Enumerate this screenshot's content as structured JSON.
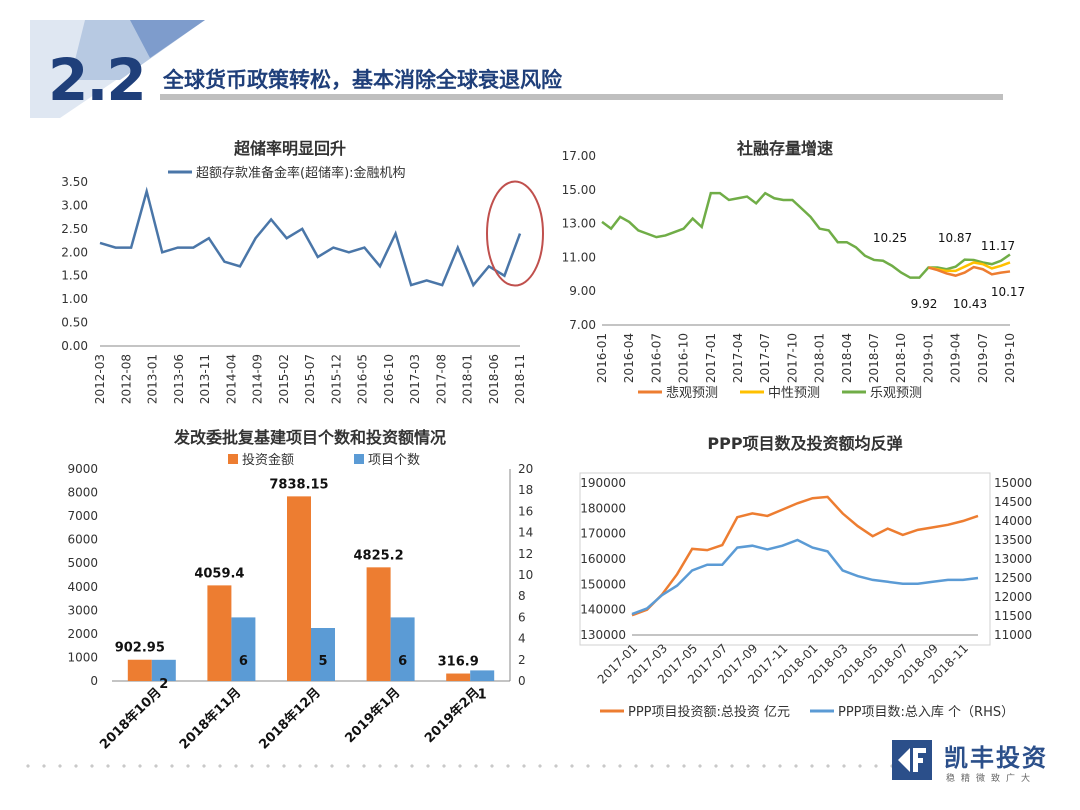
{
  "header": {
    "section_number": "2.2",
    "title": "全球货币政策转松，基本消除全球衰退风险"
  },
  "footer": {
    "brand_name": "凯丰投资",
    "brand_slogan": "稳精微致广大"
  },
  "colors": {
    "navy": "#1f3f7a",
    "blue_line": "#4a76a8",
    "orange": "#ed7d31",
    "yellow": "#ffc000",
    "green": "#70ad47",
    "sky": "#5b9bd5",
    "circle": "#c0504d"
  },
  "chart_data": [
    {
      "id": "excess-reserve",
      "type": "line",
      "title": "超储率明显回升",
      "ylim": [
        0,
        3.5
      ],
      "yticks": [
        "3.50",
        "3.00",
        "2.50",
        "2.00",
        "1.50",
        "1.00",
        "0.50",
        "0.00"
      ],
      "xticks": [
        "2012-03",
        "2012-08",
        "2013-01",
        "2013-06",
        "2013-11",
        "2014-04",
        "2014-09",
        "2015-02",
        "2015-07",
        "2015-12",
        "2016-05",
        "2016-10",
        "2017-03",
        "2017-08",
        "2018-01",
        "2018-06",
        "2018-11"
      ],
      "series": [
        {
          "name": "超额存款准备金率(超储率):金融机构",
          "values": [
            2.2,
            2.1,
            2.1,
            3.3,
            2.0,
            2.1,
            2.1,
            2.3,
            1.8,
            1.7,
            2.3,
            2.7,
            2.3,
            2.5,
            1.9,
            2.1,
            2.0,
            2.1,
            1.7,
            2.4,
            1.3,
            1.4,
            1.3,
            2.1,
            1.3,
            1.7,
            1.5,
            2.4
          ]
        }
      ]
    },
    {
      "id": "social-financing",
      "type": "line",
      "title": "社融存量增速",
      "ylim": [
        7,
        17
      ],
      "yticks": [
        "17.00",
        "15.00",
        "13.00",
        "11.00",
        "9.00",
        "7.00"
      ],
      "xticks": [
        "2016-01",
        "2016-04",
        "2016-07",
        "2016-10",
        "2017-01",
        "2017-04",
        "2017-07",
        "2017-10",
        "2018-01",
        "2018-04",
        "2018-07",
        "2018-10",
        "2019-01",
        "2019-04",
        "2019-07",
        "2019-10"
      ],
      "series": [
        {
          "name": "悲观预测",
          "values": [
            10.4,
            10.25,
            10.05,
            9.92,
            10.1,
            10.43,
            10.3,
            10.0,
            10.1,
            10.17
          ]
        },
        {
          "name": "中性预测",
          "values": [
            10.4,
            10.3,
            10.2,
            10.2,
            10.45,
            10.7,
            10.6,
            10.35,
            10.5,
            10.7
          ]
        },
        {
          "name": "乐观预测",
          "values": [
            13.1,
            12.7,
            13.4,
            13.1,
            12.6,
            12.4,
            12.2,
            12.3,
            12.5,
            12.7,
            13.3,
            12.8,
            14.8,
            14.8,
            14.4,
            14.5,
            14.6,
            14.2,
            14.8,
            14.5,
            14.4,
            14.4,
            13.9,
            13.4,
            12.7,
            12.6,
            11.9,
            11.9,
            11.6,
            11.1,
            10.85,
            10.8,
            10.5,
            10.1,
            9.8,
            9.8,
            10.4,
            10.4,
            10.3,
            10.45,
            10.87,
            10.85,
            10.7,
            10.6,
            10.8,
            11.17
          ]
        }
      ],
      "annotations": [
        "10.25",
        "10.87",
        "11.17",
        "9.92",
        "10.43",
        "10.17"
      ]
    },
    {
      "id": "ndrc-projects",
      "type": "bar",
      "title": "发改委批复基建项目个数和投资额情况",
      "categories": [
        "2018年10月",
        "2018年11月",
        "2018年12月",
        "2019年1月",
        "2019年2月"
      ],
      "ylim": [
        0,
        9000
      ],
      "y2lim": [
        0,
        20
      ],
      "yticks": [
        "9000",
        "8000",
        "7000",
        "6000",
        "5000",
        "4000",
        "3000",
        "2000",
        "1000",
        "0"
      ],
      "y2ticks": [
        "20",
        "18",
        "16",
        "14",
        "12",
        "10",
        "8",
        "6",
        "4",
        "2",
        "0"
      ],
      "series": [
        {
          "name": "投资金额",
          "values": [
            902.95,
            4059.4,
            7838.15,
            4825.2,
            316.9
          ],
          "labels": [
            "902.95",
            "4059.4",
            "7838.15",
            "4825.2",
            "316.9"
          ]
        },
        {
          "name": "项目个数",
          "values": [
            2,
            6,
            5,
            6,
            1
          ],
          "labels": [
            "2",
            "6",
            "5",
            "6",
            "1"
          ]
        }
      ]
    },
    {
      "id": "ppp",
      "type": "line",
      "title": "PPP项目数及投资额均反弹",
      "ylim": [
        130000,
        190000
      ],
      "y2lim": [
        11000,
        15000
      ],
      "yticks": [
        "190000",
        "180000",
        "170000",
        "160000",
        "150000",
        "140000",
        "130000"
      ],
      "y2ticks": [
        "15000",
        "14500",
        "14000",
        "13500",
        "13000",
        "12500",
        "12000",
        "11500",
        "11000"
      ],
      "xticks": [
        "2017-01",
        "2017-03",
        "2017-05",
        "2017-07",
        "2017-09",
        "2017-11",
        "2018-01",
        "2018-03",
        "2018-05",
        "2018-07",
        "2018-09",
        "2018-11"
      ],
      "series": [
        {
          "name": "PPP项目投资额:总投资 亿元",
          "values": [
            137800,
            140000,
            146000,
            154000,
            164000,
            163500,
            165500,
            176500,
            178000,
            177000,
            179500,
            182000,
            184000,
            184500,
            178000,
            173000,
            169000,
            172000,
            169500,
            171500,
            172500,
            173500,
            175000,
            177000
          ]
        },
        {
          "name": "PPP项目数:总入库 个（RHS）",
          "values": [
            11550,
            11700,
            12050,
            12300,
            12700,
            12850,
            12850,
            13300,
            13350,
            13250,
            13350,
            13500,
            13300,
            13200,
            12700,
            12550,
            12450,
            12400,
            12350,
            12350,
            12400,
            12450,
            12450,
            12500
          ]
        }
      ]
    }
  ]
}
